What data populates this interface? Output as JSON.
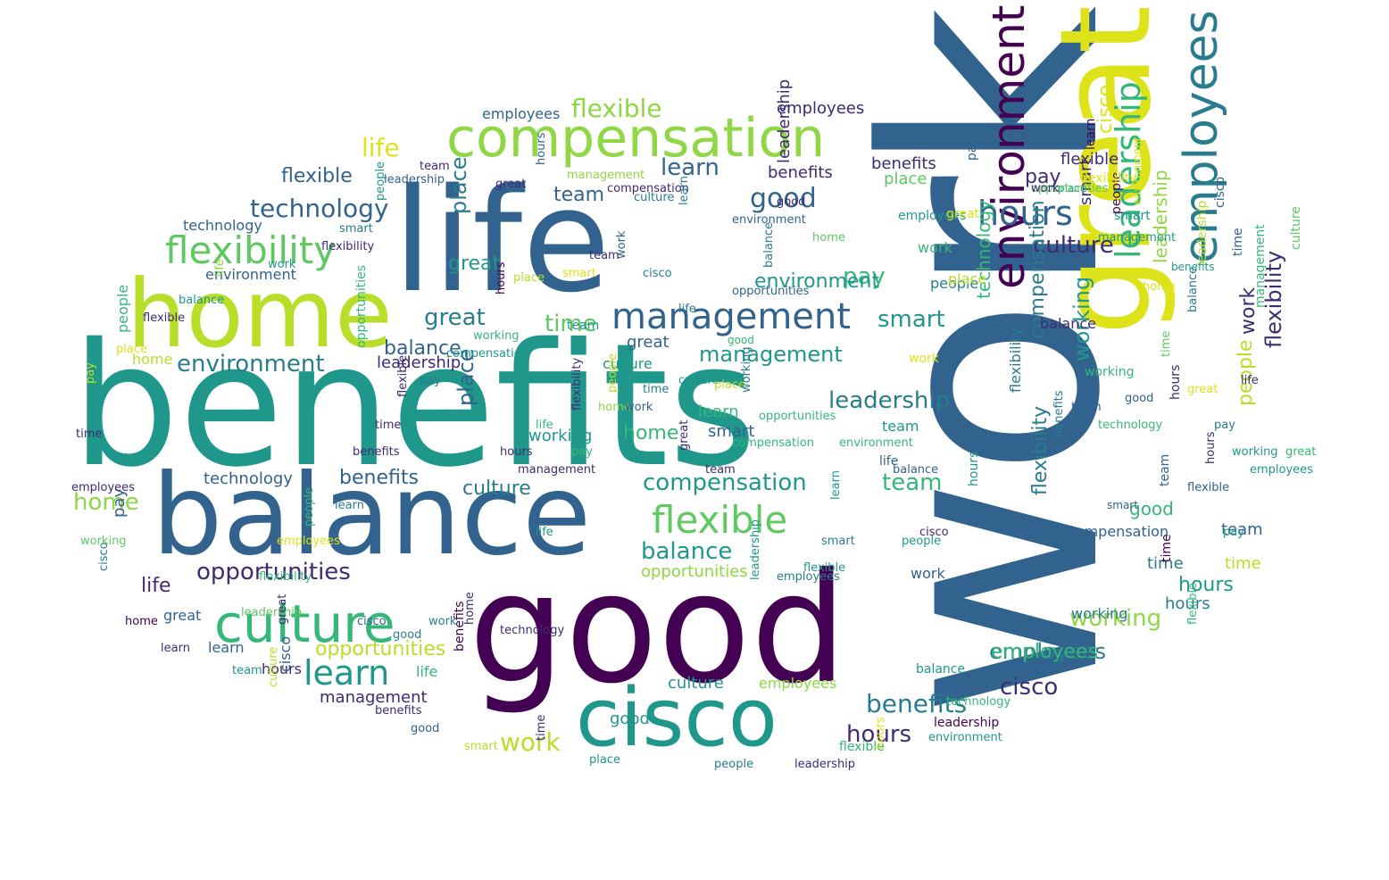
{
  "palette": {
    "c0": "#440154",
    "c1": "#3f2a75",
    "c2": "#31638e",
    "c3": "#287c8e",
    "c4": "#1f978b",
    "c5": "#35b779",
    "c6": "#5ec962",
    "c7": "#8fd744",
    "c8": "#b8de29",
    "c9": "#dde318"
  },
  "words": [
    {
      "t": "work",
      "c": "c2"
    },
    {
      "t": "benefits",
      "c": "c4"
    },
    {
      "t": "good",
      "c": "c0"
    },
    {
      "t": "life",
      "c": "c2"
    },
    {
      "t": "balance",
      "c": "c2"
    },
    {
      "t": "great",
      "c": "c9"
    },
    {
      "t": "home",
      "c": "c8"
    },
    {
      "t": "cisco",
      "c": "c4"
    },
    {
      "t": "compensation",
      "c": "c7"
    },
    {
      "t": "culture",
      "c": "c5"
    },
    {
      "t": "environment",
      "c": "c0"
    },
    {
      "t": "employees",
      "c": "c3"
    },
    {
      "t": "flexibility",
      "c": "c6"
    },
    {
      "t": "management",
      "c": "c2"
    },
    {
      "t": "hours",
      "c": "c2"
    },
    {
      "t": "learn",
      "c": "c4"
    },
    {
      "t": "flexible",
      "c": "c6"
    },
    {
      "t": "leadership",
      "c": "c5"
    },
    {
      "t": "opportunities",
      "c": "c1"
    },
    {
      "t": "technology",
      "c": "c2"
    },
    {
      "t": "flexible",
      "c": "c7"
    },
    {
      "t": "compensation",
      "c": "c4"
    },
    {
      "t": "balance",
      "c": "c4"
    },
    {
      "t": "benefits",
      "c": "c3"
    },
    {
      "t": "employees",
      "c": "c3"
    },
    {
      "t": "hours",
      "c": "c1"
    },
    {
      "t": "cisco",
      "c": "c1"
    },
    {
      "t": "environment",
      "c": "c3"
    },
    {
      "t": "leadership",
      "c": "c3"
    },
    {
      "t": "management",
      "c": "c4"
    },
    {
      "t": "culture",
      "c": "c1"
    },
    {
      "t": "working",
      "c": "c7"
    },
    {
      "t": "flexibility",
      "c": "c1"
    },
    {
      "t": "great",
      "c": "c3"
    },
    {
      "t": "good",
      "c": "c2"
    },
    {
      "t": "smart",
      "c": "c4"
    },
    {
      "t": "team",
      "c": "c5"
    },
    {
      "t": "time",
      "c": "c6"
    },
    {
      "t": "opportunities",
      "c": "c8"
    },
    {
      "t": "work",
      "c": "c8"
    },
    {
      "t": "learn",
      "c": "c2"
    },
    {
      "t": "pay",
      "c": "c5"
    },
    {
      "t": "life",
      "c": "c9"
    },
    {
      "t": "flexible",
      "c": "c2"
    },
    {
      "t": "benefits",
      "c": "c2"
    },
    {
      "t": "home",
      "c": "c7"
    },
    {
      "t": "balance",
      "c": "c2"
    },
    {
      "t": "environment",
      "c": "c4"
    },
    {
      "t": "working",
      "c": "c4"
    },
    {
      "t": "place",
      "c": "c2"
    },
    {
      "t": "people",
      "c": "c2"
    },
    {
      "t": "culture",
      "c": "c3"
    },
    {
      "t": "technology",
      "c": "c2"
    },
    {
      "t": "leadership",
      "c": "c7"
    },
    {
      "t": "place",
      "c": "c3"
    },
    {
      "t": "people",
      "c": "c8"
    },
    {
      "t": "team",
      "c": "c2"
    },
    {
      "t": "hours",
      "c": "c4"
    },
    {
      "t": "employees",
      "c": "c5"
    },
    {
      "t": "great",
      "c": "c4"
    },
    {
      "t": "compensation",
      "c": "c3"
    },
    {
      "t": "flexibility",
      "c": "c3"
    },
    {
      "t": "technology",
      "c": "c5"
    },
    {
      "t": "leadership",
      "c": "c1"
    },
    {
      "t": "good",
      "c": "c5"
    },
    {
      "t": "smart",
      "c": "c2"
    },
    {
      "t": "employees",
      "c": "c2"
    },
    {
      "t": "time",
      "c": "c8"
    },
    {
      "t": "benefits",
      "c": "c1"
    },
    {
      "t": "team",
      "c": "c4"
    },
    {
      "t": "pay",
      "c": "c1"
    },
    {
      "t": "learn",
      "c": "c5"
    },
    {
      "t": "life",
      "c": "c1"
    },
    {
      "t": "working",
      "c": "c4"
    },
    {
      "t": "opportunities",
      "c": "c7"
    },
    {
      "t": "work",
      "c": "c1"
    },
    {
      "t": "management",
      "c": "c1"
    },
    {
      "t": "culture",
      "c": "c4"
    },
    {
      "t": "home",
      "c": "c5"
    },
    {
      "t": "employees",
      "c": "c1"
    },
    {
      "t": "hours",
      "c": "c3"
    },
    {
      "t": "technology",
      "c": "c2"
    },
    {
      "t": "great",
      "c": "c2"
    },
    {
      "t": "cisco",
      "c": "c9"
    },
    {
      "t": "people",
      "c": "c3"
    },
    {
      "t": "flexible",
      "c": "c1"
    },
    {
      "t": "work",
      "c": "c5"
    },
    {
      "t": "place",
      "c": "c6"
    },
    {
      "t": "smart",
      "c": "c1"
    },
    {
      "t": "leadership",
      "c": "c1"
    },
    {
      "t": "benefits",
      "c": "c1"
    },
    {
      "t": "compensation",
      "c": "c2"
    },
    {
      "t": "flexibility",
      "c": "c3"
    },
    {
      "t": "balance",
      "c": "c1"
    },
    {
      "t": "working",
      "c": "c3"
    },
    {
      "t": "good",
      "c": "c4"
    },
    {
      "t": "team",
      "c": "c2"
    },
    {
      "t": "time",
      "c": "c3"
    },
    {
      "t": "pay",
      "c": "c2"
    },
    {
      "t": "environment",
      "c": "c2"
    },
    {
      "t": "opportunities",
      "c": "c5"
    },
    {
      "t": "employees",
      "c": "c7"
    },
    {
      "t": "culture",
      "c": "c4"
    },
    {
      "t": "home",
      "c": "c8"
    },
    {
      "t": "great",
      "c": "c2"
    },
    {
      "t": "learn",
      "c": "c2"
    },
    {
      "t": "hours",
      "c": "c1"
    },
    {
      "t": "cisco",
      "c": "c2"
    },
    {
      "t": "life",
      "c": "c5"
    },
    {
      "t": "smart",
      "c": "c4"
    },
    {
      "t": "work",
      "c": "c2"
    },
    {
      "t": "place",
      "c": "c8"
    },
    {
      "t": "people",
      "c": "c5"
    },
    {
      "t": "balance",
      "c": "c4"
    },
    {
      "t": "time",
      "c": "c2"
    },
    {
      "t": "flexible",
      "c": "c5"
    },
    {
      "t": "team",
      "c": "c2"
    },
    {
      "t": "leadership",
      "c": "c0"
    },
    {
      "t": "hours",
      "c": "c4"
    },
    {
      "t": "benefits",
      "c": "c0"
    },
    {
      "t": "management",
      "c": "c5"
    },
    {
      "t": "employees",
      "c": "c4"
    },
    {
      "t": "leadership",
      "c": "c8"
    },
    {
      "t": "life",
      "c": "c2"
    },
    {
      "t": "working",
      "c": "c5"
    },
    {
      "t": "pay",
      "c": "c2"
    },
    {
      "t": "great",
      "c": "c9"
    },
    {
      "t": "cisco",
      "c": "c2"
    },
    {
      "t": "learn",
      "c": "c0"
    },
    {
      "t": "time",
      "c": "c0"
    },
    {
      "t": "people",
      "c": "c0"
    },
    {
      "t": "place",
      "c": "c4"
    },
    {
      "t": "culture",
      "c": "c6"
    },
    {
      "t": "environment",
      "c": "c9"
    },
    {
      "t": "flexibility",
      "c": "c9"
    },
    {
      "t": "benefits",
      "c": "c4"
    },
    {
      "t": "hours",
      "c": "c1"
    },
    {
      "t": "smart",
      "c": "c2"
    },
    {
      "t": "team",
      "c": "c4"
    },
    {
      "t": "good",
      "c": "c5"
    },
    {
      "t": "work",
      "c": "c9"
    },
    {
      "t": "opportunities",
      "c": "c6"
    },
    {
      "t": "management",
      "c": "c4"
    },
    {
      "t": "home",
      "c": "c9"
    },
    {
      "t": "balance",
      "c": "c3"
    },
    {
      "t": "life",
      "c": "c1"
    },
    {
      "t": "employees",
      "c": "c4"
    },
    {
      "t": "great",
      "c": "c5"
    },
    {
      "t": "flexible",
      "c": "c5"
    },
    {
      "t": "pay",
      "c": "c4"
    },
    {
      "t": "technology",
      "c": "c5"
    },
    {
      "t": "environment",
      "c": "c4"
    },
    {
      "t": "hours",
      "c": "c9"
    },
    {
      "t": "leadership",
      "c": "c1"
    },
    {
      "t": "people",
      "c": "c3"
    },
    {
      "t": "place",
      "c": "c4"
    },
    {
      "t": "time",
      "c": "c1"
    },
    {
      "t": "smart",
      "c": "c8"
    },
    {
      "t": "good",
      "c": "c2"
    },
    {
      "t": "benefits",
      "c": "c1"
    },
    {
      "t": "culture",
      "c": "c8"
    },
    {
      "t": "team",
      "c": "c4"
    },
    {
      "t": "learn",
      "c": "c1"
    },
    {
      "t": "home",
      "c": "c0"
    },
    {
      "t": "cisco",
      "c": "c3"
    },
    {
      "t": "working",
      "c": "c6"
    },
    {
      "t": "employees",
      "c": "c1"
    },
    {
      "t": "time",
      "c": "c1"
    },
    {
      "t": "pay",
      "c": "c8"
    },
    {
      "t": "place",
      "c": "c9"
    },
    {
      "t": "flexible",
      "c": "c1"
    },
    {
      "t": "balance",
      "c": "c4"
    },
    {
      "t": "life",
      "c": "c7"
    },
    {
      "t": "work",
      "c": "c4"
    },
    {
      "t": "flexibility",
      "c": "c1"
    },
    {
      "t": "smart",
      "c": "c3"
    },
    {
      "t": "people",
      "c": "c4"
    },
    {
      "t": "leadership",
      "c": "c2"
    },
    {
      "t": "team",
      "c": "c1"
    },
    {
      "t": "great",
      "c": "c1"
    },
    {
      "t": "hours",
      "c": "c2"
    },
    {
      "t": "management",
      "c": "c7"
    },
    {
      "t": "compensation",
      "c": "c1"
    },
    {
      "t": "culture",
      "c": "c3"
    },
    {
      "t": "learn",
      "c": "c3"
    },
    {
      "t": "environment",
      "c": "c2"
    },
    {
      "t": "good",
      "c": "c1"
    },
    {
      "t": "home",
      "c": "c6"
    },
    {
      "t": "balance",
      "c": "c3"
    },
    {
      "t": "opportunities",
      "c": "c2"
    },
    {
      "t": "life",
      "c": "c3"
    },
    {
      "t": "cisco",
      "c": "c3"
    },
    {
      "t": "work",
      "c": "c2"
    },
    {
      "t": "team",
      "c": "c1"
    },
    {
      "t": "smart",
      "c": "c9"
    },
    {
      "t": "place",
      "c": "c8"
    },
    {
      "t": "hours",
      "c": "c0"
    },
    {
      "t": "working",
      "c": "c5"
    },
    {
      "t": "compensation",
      "c": "c4"
    },
    {
      "t": "pay",
      "c": "c3"
    },
    {
      "t": "flexible",
      "c": "c1"
    },
    {
      "t": "time",
      "c": "c1"
    },
    {
      "t": "benefits",
      "c": "c1"
    },
    {
      "t": "learn",
      "c": "c3"
    },
    {
      "t": "people",
      "c": "c5"
    },
    {
      "t": "employees",
      "c": "c9"
    },
    {
      "t": "flexibility",
      "c": "c5"
    },
    {
      "t": "leadership",
      "c": "c6"
    },
    {
      "t": "great",
      "c": "c1"
    },
    {
      "t": "cisco",
      "c": "c2"
    },
    {
      "t": "good",
      "c": "c3"
    },
    {
      "t": "work",
      "c": "c3"
    },
    {
      "t": "home",
      "c": "c1"
    },
    {
      "t": "technology",
      "c": "c1"
    },
    {
      "t": "life",
      "c": "c4"
    },
    {
      "t": "pay",
      "c": "c5"
    },
    {
      "t": "people",
      "c": "c8"
    },
    {
      "t": "time",
      "c": "c3"
    },
    {
      "t": "culture",
      "c": "c4"
    },
    {
      "t": "place",
      "c": "c8"
    },
    {
      "t": "working",
      "c": "c3"
    },
    {
      "t": "opportunities",
      "c": "c5"
    },
    {
      "t": "compensation",
      "c": "c5"
    },
    {
      "t": "team",
      "c": "c1"
    },
    {
      "t": "great",
      "c": "c1"
    },
    {
      "t": "management",
      "c": "c1"
    },
    {
      "t": "hours",
      "c": "c1"
    },
    {
      "t": "life",
      "c": "c5"
    },
    {
      "t": "flexibility",
      "c": "c1"
    },
    {
      "t": "home",
      "c": "c7"
    },
    {
      "t": "work",
      "c": "c2"
    },
    {
      "t": "environment",
      "c": "c5"
    },
    {
      "t": "learn",
      "c": "c4"
    },
    {
      "t": "smart",
      "c": "c3"
    },
    {
      "t": "flexible",
      "c": "c4"
    },
    {
      "t": "employees",
      "c": "c3"
    },
    {
      "t": "leadership",
      "c": "c4"
    },
    {
      "t": "balance",
      "c": "c2"
    },
    {
      "t": "people",
      "c": "c4"
    },
    {
      "t": "cisco",
      "c": "c1"
    },
    {
      "t": "benefits",
      "c": "c3"
    },
    {
      "t": "team",
      "c": "c2"
    },
    {
      "t": "technology",
      "c": "c5"
    },
    {
      "t": "good",
      "c": "c2"
    },
    {
      "t": "time",
      "c": "c6"
    },
    {
      "t": "great",
      "c": "c9"
    },
    {
      "t": "pay",
      "c": "c3"
    },
    {
      "t": "working",
      "c": "c4"
    },
    {
      "t": "hours",
      "c": "c1"
    },
    {
      "t": "flexible",
      "c": "c2"
    },
    {
      "t": "work",
      "c": "c1"
    }
  ]
}
